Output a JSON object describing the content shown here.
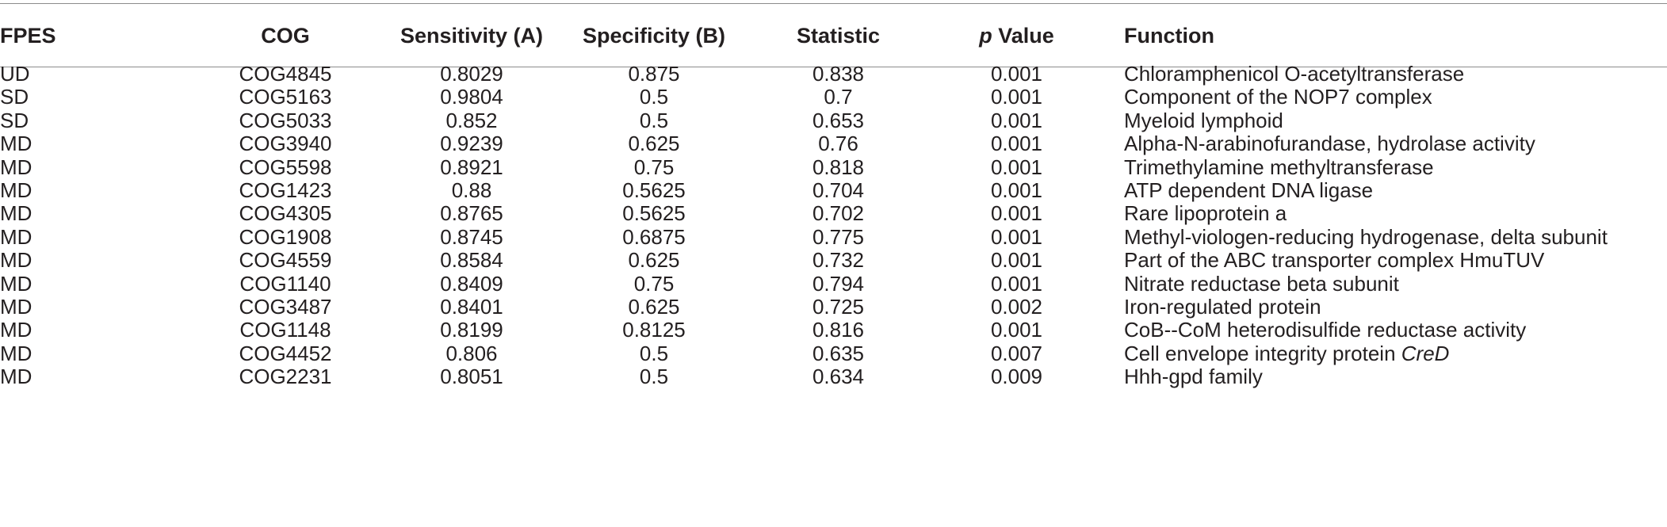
{
  "table": {
    "headers": {
      "fpes": "FPES",
      "cog": "COG",
      "sensitivity": "Sensitivity (A)",
      "specificity": "Specificity (B)",
      "statistic": "Statistic",
      "p_italic": "p",
      "p_rest": " Value",
      "function": "Function"
    },
    "rows": [
      {
        "fpes": "UD",
        "cog": "COG4845",
        "sensitivity": "0.8029",
        "specificity": "0.875",
        "statistic": "0.838",
        "p": "0.001",
        "function": "Chloramphenicol O-acetyltransferase",
        "function_italic": ""
      },
      {
        "fpes": "SD",
        "cog": "COG5163",
        "sensitivity": "0.9804",
        "specificity": "0.5",
        "statistic": "0.7",
        "p": "0.001",
        "function": "Component of the NOP7 complex",
        "function_italic": ""
      },
      {
        "fpes": "SD",
        "cog": "COG5033",
        "sensitivity": "0.852",
        "specificity": "0.5",
        "statistic": "0.653",
        "p": "0.001",
        "function": "Myeloid lymphoid",
        "function_italic": ""
      },
      {
        "fpes": "MD",
        "cog": "COG3940",
        "sensitivity": "0.9239",
        "specificity": "0.625",
        "statistic": "0.76",
        "p": "0.001",
        "function": "Alpha-N-arabinofurandase, hydrolase activity",
        "function_italic": ""
      },
      {
        "fpes": "MD",
        "cog": "COG5598",
        "sensitivity": "0.8921",
        "specificity": "0.75",
        "statistic": "0.818",
        "p": "0.001",
        "function": "Trimethylamine methyltransferase",
        "function_italic": ""
      },
      {
        "fpes": "MD",
        "cog": "COG1423",
        "sensitivity": "0.88",
        "specificity": "0.5625",
        "statistic": "0.704",
        "p": "0.001",
        "function": "ATP dependent DNA ligase",
        "function_italic": ""
      },
      {
        "fpes": "MD",
        "cog": "COG4305",
        "sensitivity": "0.8765",
        "specificity": "0.5625",
        "statistic": "0.702",
        "p": "0.001",
        "function": "Rare lipoprotein a",
        "function_italic": ""
      },
      {
        "fpes": "MD",
        "cog": "COG1908",
        "sensitivity": "0.8745",
        "specificity": "0.6875",
        "statistic": "0.775",
        "p": "0.001",
        "function": "Methyl-viologen-reducing hydrogenase, delta subunit",
        "function_italic": ""
      },
      {
        "fpes": "MD",
        "cog": "COG4559",
        "sensitivity": "0.8584",
        "specificity": "0.625",
        "statistic": "0.732",
        "p": "0.001",
        "function": "Part of the ABC transporter complex HmuTUV",
        "function_italic": ""
      },
      {
        "fpes": "MD",
        "cog": "COG1140",
        "sensitivity": "0.8409",
        "specificity": "0.75",
        "statistic": "0.794",
        "p": "0.001",
        "function": "Nitrate reductase beta subunit",
        "function_italic": ""
      },
      {
        "fpes": "MD",
        "cog": "COG3487",
        "sensitivity": "0.8401",
        "specificity": "0.625",
        "statistic": "0.725",
        "p": "0.002",
        "function": "Iron-regulated protein",
        "function_italic": ""
      },
      {
        "fpes": "MD",
        "cog": "COG1148",
        "sensitivity": "0.8199",
        "specificity": "0.8125",
        "statistic": "0.816",
        "p": "0.001",
        "function": "CoB--CoM heterodisulfide reductase activity",
        "function_italic": ""
      },
      {
        "fpes": "MD",
        "cog": "COG4452",
        "sensitivity": "0.806",
        "specificity": "0.5",
        "statistic": "0.635",
        "p": "0.007",
        "function": "Cell envelope integrity protein ",
        "function_italic": "CreD"
      },
      {
        "fpes": "MD",
        "cog": "COG2231",
        "sensitivity": "0.8051",
        "specificity": "0.5",
        "statistic": "0.634",
        "p": "0.009",
        "function": "Hhh-gpd family",
        "function_italic": ""
      }
    ]
  }
}
